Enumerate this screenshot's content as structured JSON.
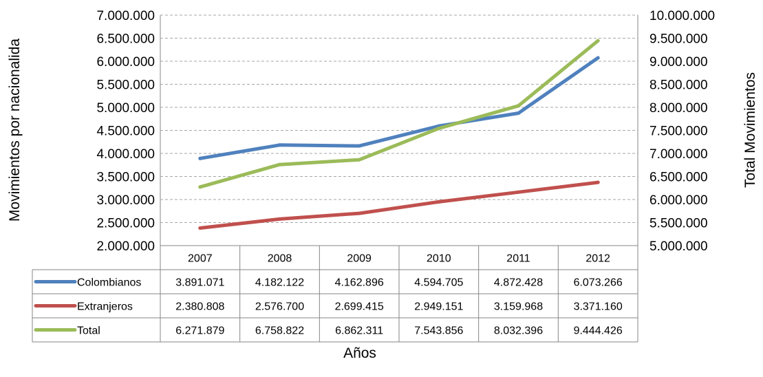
{
  "chart_data": {
    "type": "line",
    "xlabel": "Años",
    "ylabel": "Movimientos por nacionalida",
    "y2label": "Total Movimientos",
    "categories": [
      "2007",
      "2008",
      "2009",
      "2010",
      "2011",
      "2012"
    ],
    "ylim": [
      2000000,
      7000000
    ],
    "y2lim": [
      5000000,
      10000000
    ],
    "yticks": [
      "2.000.000",
      "2.500.000",
      "3.000.000",
      "3.500.000",
      "4.000.000",
      "4.500.000",
      "5.000.000",
      "5.500.000",
      "6.000.000",
      "6.500.000",
      "7.000.000"
    ],
    "y2ticks": [
      "5.000.000",
      "5.500.000",
      "6.000.000",
      "6.500.000",
      "7.000.000",
      "7.500.000",
      "8.000.000",
      "8.500.000",
      "9.000.000",
      "9.500.000",
      "10.000.000"
    ],
    "grid": true,
    "legend": "data table below plot",
    "series": [
      {
        "name": "Colombianos",
        "axis": "left",
        "color": "#4f81bd",
        "values": [
          3891071,
          4182122,
          4162896,
          4594705,
          4872428,
          6073266
        ],
        "labels": [
          "3.891.071",
          "4.182.122",
          "4.162.896",
          "4.594.705",
          "4.872.428",
          "6.073.266"
        ]
      },
      {
        "name": "Extranjeros",
        "axis": "left",
        "color": "#c0504d",
        "values": [
          2380808,
          2576700,
          2699415,
          2949151,
          3159968,
          3371160
        ],
        "labels": [
          "2.380.808",
          "2.576.700",
          "2.699.415",
          "2.949.151",
          "3.159.968",
          "3.371.160"
        ]
      },
      {
        "name": "Total",
        "axis": "right",
        "color": "#9bbb59",
        "values": [
          6271879,
          6758822,
          6862311,
          7543856,
          8032396,
          9444426
        ],
        "labels": [
          "6.271.879",
          "6.758.822",
          "6.862.311",
          "7.543.856",
          "8.032.396",
          "9.444.426"
        ]
      }
    ]
  }
}
